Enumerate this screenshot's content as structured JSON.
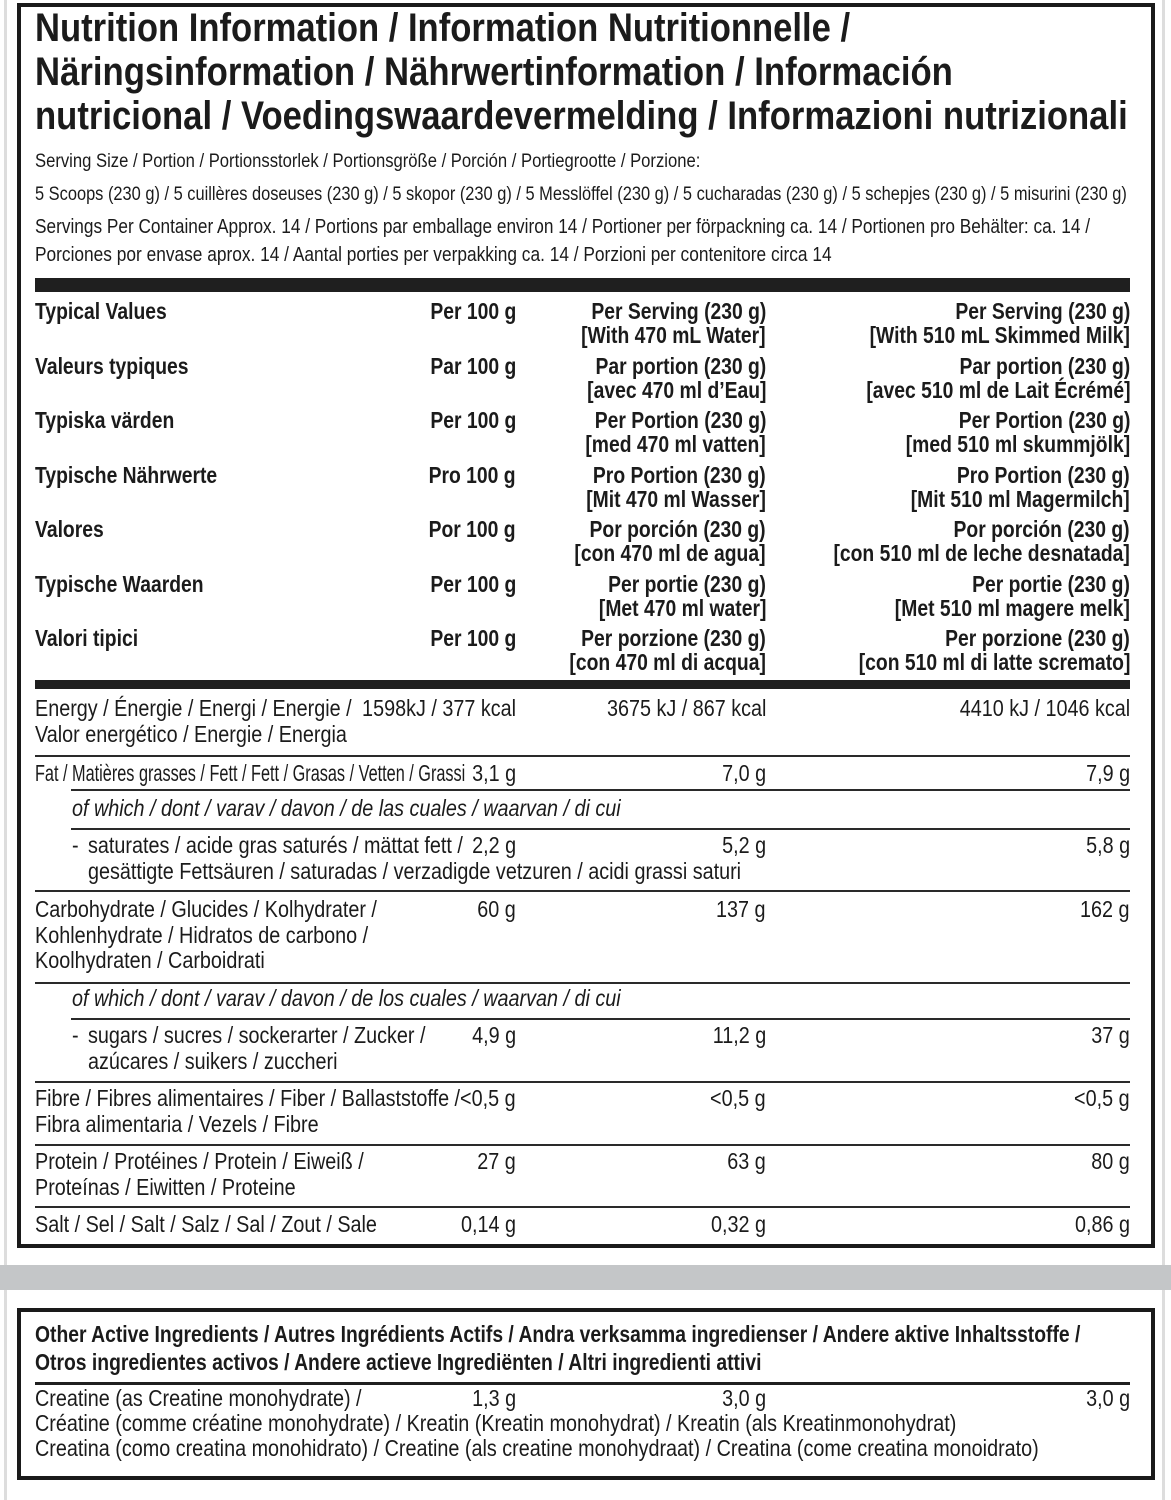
{
  "title_lines": [
    "Nutrition Information / Information Nutritionnelle /",
    "Näringsinformation / Nährwertinformation / Información",
    "nutricional / Voedingswaardevermelding / Informazioni nutrizionali"
  ],
  "serving_size_label": "Serving Size / Portion / Portionsstorlek / Portionsgröße / Porción / Portiegrootte / Porzione:",
  "serving_size_value": "5 Scoops (230 g) / 5 cuillères doseuses (230 g) / 5 skopor (230 g) / 5 Messlöffel (230 g) / 5 cucharadas (230 g) / 5 schepjes (230 g) / 5 misurini (230 g)",
  "servings_per_container": [
    "Servings Per Container Approx. 14 / Portions par emballage environ 14 / Portioner per förpackning ca. 14 / Portionen pro Behälter: ca. 14 /",
    "Porciones por envase aprox. 14 / Aantal porties per verpakking ca. 14 / Porzioni per contenitore circa 14"
  ],
  "header_rows": [
    {
      "label": "Typical Values",
      "per100": "Per 100 g",
      "serving": [
        "Per Serving (230 g)",
        "[With 470 mL Water]"
      ],
      "milk": [
        "Per Serving (230 g)",
        "[With 510 mL Skimmed Milk]"
      ]
    },
    {
      "label": "Valeurs typiques",
      "per100": "Par 100 g",
      "serving": [
        "Par portion (230 g)",
        "[avec 470 ml d’Eau]"
      ],
      "milk": [
        "Par portion (230 g)",
        "[avec 510 ml de Lait Écrémé]"
      ]
    },
    {
      "label": "Typiska värden",
      "per100": "Per 100 g",
      "serving": [
        "Per Portion  (230 g)",
        "[med 470 ml vatten]"
      ],
      "milk": [
        "Per Portion  (230 g)",
        "[med 510 ml skummjölk]"
      ]
    },
    {
      "label": "Typische Nährwerte",
      "per100": "Pro 100 g",
      "serving": [
        "Pro Portion (230 g)",
        "[Mit 470 ml Wasser]"
      ],
      "milk": [
        "Pro Portion (230 g)",
        "[Mit 510 ml Magermilch]"
      ]
    },
    {
      "label": "Valores",
      "per100": "Por 100 g",
      "serving": [
        "Por porción (230 g)",
        "[con 470 ml de agua]"
      ],
      "milk": [
        "Por porción (230 g)",
        "[con 510 ml de leche desnatada]"
      ]
    },
    {
      "label": "Typische Waarden",
      "per100": "Per 100 g",
      "serving": [
        "Per portie (230 g)",
        "[Met 470 ml water]"
      ],
      "milk": [
        "Per portie (230 g)",
        "[Met 510 ml magere melk]"
      ]
    },
    {
      "label": "Valori tipici",
      "per100": "Per 100 g",
      "serving": [
        "Per porzione (230 g)",
        "[con 470 ml di acqua]"
      ],
      "milk": [
        "Per porzione (230 g)",
        "[con 510 ml di latte scremato]"
      ]
    }
  ],
  "nutrients": {
    "energy": {
      "label": [
        "Energy / Énergie / Energi / Energie /",
        "Valor energético / Energie / Energia"
      ],
      "per100": "1598kJ / 377 kcal",
      "serving": "3675 kJ / 867 kcal",
      "milk": "4410 kJ / 1046 kcal"
    },
    "fat": {
      "label": [
        "Fat / Matières grasses / Fett / Fett / Grasas / Vetten / Grassi"
      ],
      "per100": "3,1 g",
      "serving": "7,0 g",
      "milk": "7,9 g"
    },
    "fat_of_which": "of which / dont / varav / davon / de las cuales / waarvan / di cui",
    "saturates": {
      "label": [
        "saturates / acide gras saturés / mättat fett /",
        "gesättigte Fettsäuren / saturadas / verzadigde vetzuren / acidi grassi saturi"
      ],
      "per100": "2,2 g",
      "serving": "5,2 g",
      "milk": "5,8 g"
    },
    "carbohydrate": {
      "label": [
        "Carbohydrate / Glucides / Kolhydrater /",
        "Kohlenhydrate / Hidratos de carbono /",
        "Koolhydraten / Carboidrati"
      ],
      "per100": "60 g",
      "serving": "137 g",
      "milk": "162 g"
    },
    "carb_of_which": "of which / dont / varav / davon / de los cuales / waarvan / di cui",
    "sugars": {
      "label": [
        "sugars / sucres / sockerarter / Zucker /",
        "azúcares / suikers / zuccheri"
      ],
      "per100": "4,9 g",
      "serving": "11,2 g",
      "milk": "37 g"
    },
    "fibre": {
      "label": [
        "Fibre / Fibres alimentaires / Fiber / Ballaststoffe /",
        "Fibra alimentaria / Vezels / Fibre"
      ],
      "per100": "<0,5 g",
      "serving": "<0,5 g",
      "milk": "<0,5 g"
    },
    "protein": {
      "label": [
        "Protein / Protéines / Protein / Eiweiß /",
        "Proteínas / Eiwitten / Proteine"
      ],
      "per100": "27 g",
      "serving": "63 g",
      "milk": "80 g"
    },
    "salt": {
      "label": [
        "Salt / Sel / Salt / Salz / Sal / Zout / Sale"
      ],
      "per100": "0,14 g",
      "serving": "0,32 g",
      "milk": "0,86 g"
    }
  },
  "dash": "-",
  "other_active": {
    "title_lines": [
      "Other Active Ingredients / Autres Ingrédients Actifs / Andra verksamma ingredienser / Andere aktive Inhaltsstoffe /",
      "Otros ingredientes activos / Andere actieve Ingrediënten / Altri ingredienti attivi"
    ],
    "creatine": {
      "label": [
        "Creatine (as Creatine monohydrate) /",
        "Créatine (comme créatine monohydrate) / Kreatin (Kreatin monohydrat) / Kreatin (als Kreatinmonohydrat)",
        "Creatina (como creatina monohidrato) / Creatine (als creatine monohydraat) / Creatina (come creatina monoidrato)"
      ],
      "per100": "1,3 g",
      "serving": "3,0 g",
      "milk": "3,0 g"
    }
  }
}
